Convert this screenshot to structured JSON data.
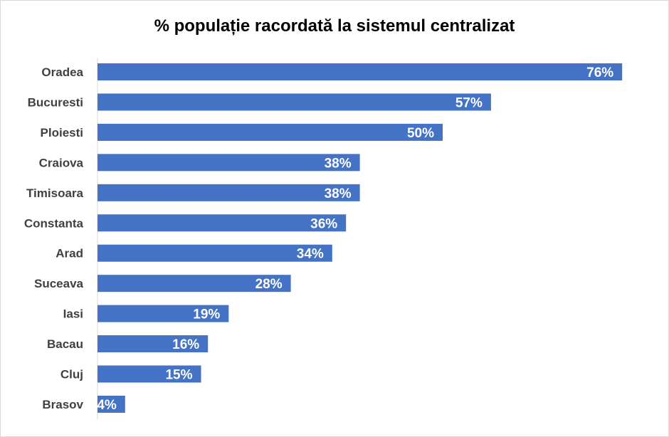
{
  "chart_data": {
    "type": "bar",
    "orientation": "horizontal",
    "title": "% populație racordată la sistemul centralizat",
    "categories": [
      "Oradea",
      "Bucuresti",
      "Ploiesti",
      "Craiova",
      "Timisoara",
      "Constanta",
      "Arad",
      "Suceava",
      "Iasi",
      "Bacau",
      "Cluj",
      "Brasov"
    ],
    "values": [
      76,
      57,
      50,
      38,
      38,
      36,
      34,
      28,
      19,
      16,
      15,
      4
    ],
    "value_labels": [
      "76%",
      "57%",
      "50%",
      "38%",
      "38%",
      "36%",
      "34%",
      "28%",
      "19%",
      "16%",
      "15%",
      "4%"
    ],
    "unit": "%",
    "xlabel": "",
    "ylabel": "",
    "grid": false,
    "legend": "none",
    "bar_color": "#4472c4"
  }
}
